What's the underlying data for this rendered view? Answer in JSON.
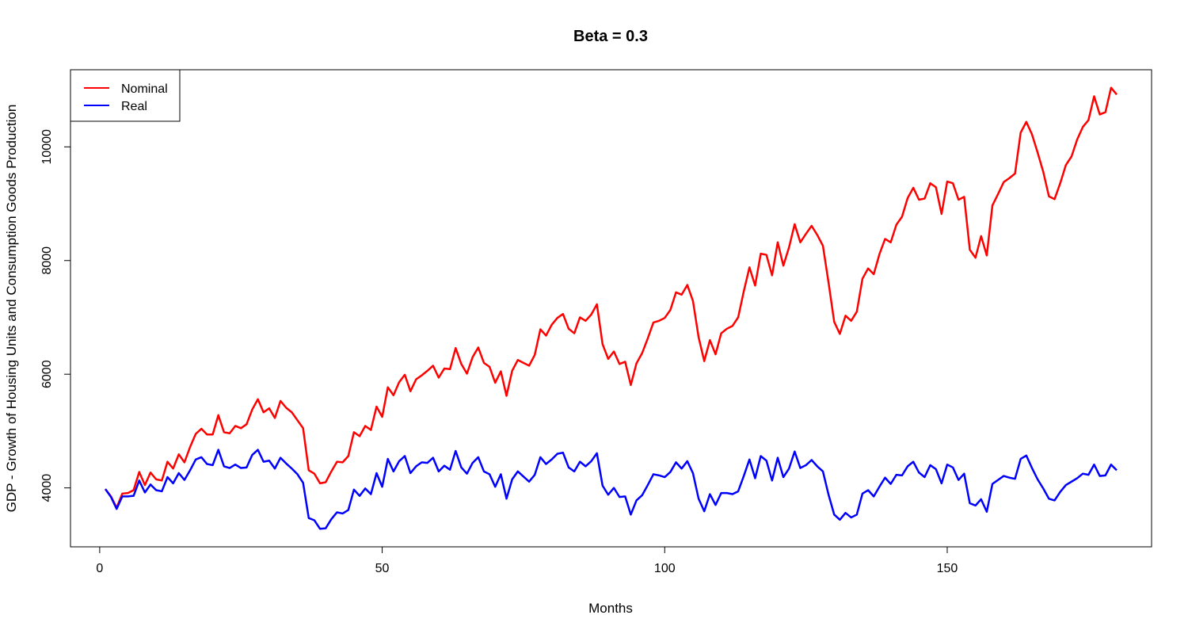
{
  "chart_data": {
    "type": "line",
    "title": "Beta = 0.3",
    "xlabel": "Months",
    "ylabel": "GDP - Growth of Housing Units and Consumption Goods Production",
    "xlim": [
      1,
      180
    ],
    "ylim": [
      3270,
      11050
    ],
    "x_ticks": [
      0,
      50,
      100,
      150
    ],
    "y_ticks": [
      4000,
      6000,
      8000,
      10000
    ],
    "grid": false,
    "legend_position": "top-left",
    "x": [
      1,
      2,
      3,
      4,
      5,
      6,
      7,
      8,
      9,
      10,
      11,
      12,
      13,
      14,
      15,
      16,
      17,
      18,
      19,
      20,
      21,
      22,
      23,
      24,
      25,
      26,
      27,
      28,
      29,
      30,
      31,
      32,
      33,
      34,
      35,
      36,
      37,
      38,
      39,
      40,
      41,
      42,
      43,
      44,
      45,
      46,
      47,
      48,
      49,
      50,
      51,
      52,
      53,
      54,
      55,
      56,
      57,
      58,
      59,
      60,
      61,
      62,
      63,
      64,
      65,
      66,
      67,
      68,
      69,
      70,
      71,
      72,
      73,
      74,
      75,
      76,
      77,
      78,
      79,
      80,
      81,
      82,
      83,
      84,
      85,
      86,
      87,
      88,
      89,
      90,
      91,
      92,
      93,
      94,
      95,
      96,
      97,
      98,
      99,
      100,
      101,
      102,
      103,
      104,
      105,
      106,
      107,
      108,
      109,
      110,
      111,
      112,
      113,
      114,
      115,
      116,
      117,
      118,
      119,
      120,
      121,
      122,
      123,
      124,
      125,
      126,
      127,
      128,
      129,
      130,
      131,
      132,
      133,
      134,
      135,
      136,
      137,
      138,
      139,
      140,
      141,
      142,
      143,
      144,
      145,
      146,
      147,
      148,
      149,
      150,
      151,
      152,
      153,
      154,
      155,
      156,
      157,
      158,
      159,
      160,
      161,
      162,
      163,
      164,
      165,
      166,
      167,
      168,
      169,
      170,
      171,
      172,
      173,
      174,
      175,
      176,
      177,
      178,
      179,
      180
    ],
    "series": [
      {
        "name": "Nominal",
        "color": "#ff0000",
        "values": [
          3980,
          3850,
          3650,
          3900,
          3910,
          3960,
          4280,
          4050,
          4270,
          4150,
          4130,
          4460,
          4340,
          4590,
          4450,
          4720,
          4950,
          5040,
          4940,
          4940,
          5280,
          4980,
          4960,
          5090,
          5050,
          5120,
          5380,
          5560,
          5330,
          5400,
          5230,
          5530,
          5410,
          5330,
          5190,
          5050,
          4310,
          4250,
          4080,
          4100,
          4290,
          4460,
          4450,
          4560,
          4980,
          4910,
          5090,
          5020,
          5430,
          5250,
          5770,
          5630,
          5860,
          5990,
          5700,
          5910,
          5980,
          6060,
          6150,
          5940,
          6100,
          6090,
          6460,
          6180,
          6010,
          6300,
          6470,
          6200,
          6130,
          5850,
          6050,
          5620,
          6060,
          6250,
          6200,
          6150,
          6340,
          6790,
          6680,
          6870,
          6990,
          7060,
          6800,
          6720,
          7000,
          6940,
          7050,
          7230,
          6530,
          6270,
          6400,
          6180,
          6220,
          5810,
          6190,
          6370,
          6630,
          6910,
          6940,
          6990,
          7130,
          7440,
          7400,
          7570,
          7290,
          6650,
          6230,
          6600,
          6350,
          6720,
          6800,
          6850,
          7000,
          7460,
          7880,
          7560,
          8120,
          8100,
          7740,
          8320,
          7910,
          8230,
          8640,
          8320,
          8470,
          8610,
          8450,
          8260,
          7610,
          6920,
          6710,
          7030,
          6940,
          7100,
          7680,
          7860,
          7760,
          8110,
          8380,
          8320,
          8630,
          8770,
          9100,
          9280,
          9070,
          9090,
          9360,
          9290,
          8820,
          9390,
          9360,
          9070,
          9120,
          8190,
          8050,
          8430,
          8090,
          8970,
          9170,
          9380,
          9450,
          9530,
          10250,
          10440,
          10220,
          9900,
          9560,
          9130,
          9080,
          9360,
          9680,
          9830,
          10130,
          10350,
          10470,
          10890,
          10570,
          10610,
          11040,
          10920
        ]
      },
      {
        "name": "Real",
        "color": "#0000ff",
        "values": [
          3980,
          3840,
          3630,
          3850,
          3850,
          3860,
          4130,
          3920,
          4060,
          3960,
          3940,
          4190,
          4080,
          4260,
          4140,
          4310,
          4500,
          4540,
          4420,
          4400,
          4670,
          4380,
          4350,
          4410,
          4350,
          4360,
          4580,
          4670,
          4460,
          4480,
          4340,
          4530,
          4430,
          4340,
          4240,
          4090,
          3470,
          3430,
          3280,
          3290,
          3450,
          3570,
          3550,
          3610,
          3970,
          3860,
          3990,
          3890,
          4260,
          4020,
          4510,
          4290,
          4470,
          4560,
          4260,
          4380,
          4450,
          4440,
          4530,
          4290,
          4390,
          4320,
          4650,
          4360,
          4250,
          4440,
          4540,
          4290,
          4240,
          4020,
          4240,
          3810,
          4150,
          4290,
          4200,
          4110,
          4230,
          4540,
          4420,
          4500,
          4600,
          4620,
          4360,
          4290,
          4460,
          4380,
          4470,
          4610,
          4040,
          3880,
          4000,
          3840,
          3850,
          3530,
          3780,
          3870,
          4050,
          4240,
          4220,
          4190,
          4280,
          4450,
          4340,
          4470,
          4260,
          3810,
          3590,
          3890,
          3700,
          3910,
          3910,
          3890,
          3940,
          4210,
          4500,
          4170,
          4560,
          4480,
          4130,
          4530,
          4190,
          4340,
          4640,
          4350,
          4400,
          4490,
          4380,
          4290,
          3880,
          3530,
          3440,
          3560,
          3480,
          3530,
          3900,
          3960,
          3850,
          4020,
          4180,
          4070,
          4230,
          4220,
          4380,
          4460,
          4270,
          4190,
          4400,
          4330,
          4080,
          4410,
          4360,
          4140,
          4250,
          3730,
          3690,
          3800,
          3580,
          4070,
          4140,
          4210,
          4180,
          4160,
          4510,
          4570,
          4350,
          4150,
          3990,
          3810,
          3780,
          3930,
          4050,
          4110,
          4170,
          4250,
          4230,
          4410,
          4210,
          4220,
          4410,
          4310
        ]
      }
    ]
  }
}
